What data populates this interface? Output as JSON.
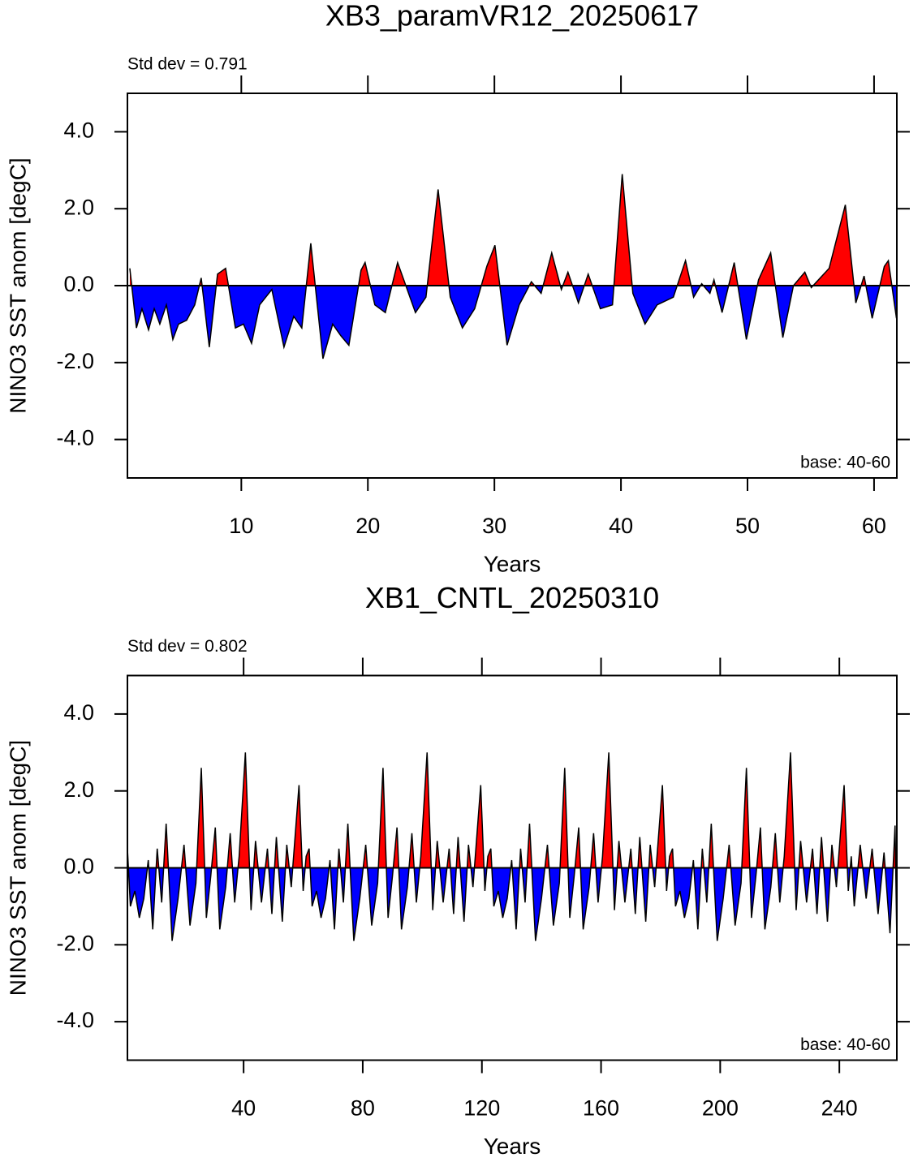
{
  "chart_data": [
    {
      "type": "area",
      "title": "XB3_paramVR12_20250617",
      "subtitle": "Std dev = 0.791",
      "annotation": "base: 40-60",
      "x_label": "Years",
      "y_label": "NINO3 SST anom [degC]",
      "pos_color": "#ff0000",
      "neg_color": "#0000ff",
      "xlim": [
        1,
        61.8
      ],
      "xticks": [
        10,
        20,
        30,
        40,
        50,
        60
      ],
      "ylim": [
        -5,
        5
      ],
      "yticks": [
        {
          "value": 4,
          "label": "4.0"
        },
        {
          "value": 2,
          "label": "2.0"
        },
        {
          "value": 0,
          "label": "0.0"
        },
        {
          "value": -2,
          "label": "-2.0"
        },
        {
          "value": -4,
          "label": "-4.0"
        }
      ],
      "x": [
        1.19,
        1.71,
        2.15,
        2.67,
        3.12,
        3.56,
        4.08,
        4.59,
        5.04,
        5.68,
        6.32,
        6.83,
        7.47,
        8.12,
        8.76,
        9.53,
        10.17,
        10.81,
        11.45,
        12.41,
        13.37,
        14.14,
        14.78,
        15.49,
        16.45,
        17.22,
        17.86,
        18.5,
        19.46,
        19.78,
        20.55,
        21.38,
        22.35,
        23.76,
        24.59,
        25.55,
        26.51,
        27.47,
        28.44,
        29.4,
        30.04,
        31,
        31.96,
        32.92,
        33.69,
        34.53,
        35.29,
        35.81,
        36.64,
        37.41,
        38.37,
        39.33,
        40.1,
        40.94,
        41.9,
        42.86,
        44.14,
        45.1,
        45.74,
        46.38,
        47.03,
        47.35,
        47.99,
        48.95,
        49.91,
        50.87,
        51.83,
        52.79,
        53.63,
        54.53,
        55.04,
        56.45,
        57.73,
        58.56,
        59.21,
        59.85,
        60.81,
        61.13,
        61.77
      ],
      "values": [
        0.45,
        -1.1,
        -0.6,
        -1.15,
        -0.6,
        -1.0,
        -0.5,
        -1.4,
        -1.0,
        -0.9,
        -0.5,
        0.2,
        -1.6,
        0.3,
        0.45,
        -1.1,
        -1.0,
        -1.5,
        -0.5,
        -0.1,
        -1.6,
        -0.8,
        -1.1,
        1.1,
        -1.9,
        -1.0,
        -1.3,
        -1.55,
        0.4,
        0.6,
        -0.5,
        -0.7,
        0.6,
        -0.7,
        -0.3,
        2.5,
        -0.3,
        -1.1,
        -0.6,
        0.5,
        1.05,
        -1.55,
        -0.5,
        0.1,
        -0.2,
        0.85,
        -0.1,
        0.35,
        -0.45,
        0.3,
        -0.6,
        -0.5,
        2.9,
        -0.2,
        -1.0,
        -0.5,
        -0.3,
        0.65,
        -0.3,
        0.05,
        -0.2,
        0.15,
        -0.7,
        0.6,
        -1.4,
        0.15,
        0.85,
        -1.35,
        0.0,
        0.35,
        -0.05,
        0.45,
        2.1,
        -0.45,
        0.25,
        -0.85,
        0.5,
        0.65,
        -0.85
      ]
    },
    {
      "type": "area",
      "title": "XB1_CNTL_20250310",
      "subtitle": "Std dev = 0.802",
      "annotation": "base: 40-60",
      "x_label": "Years",
      "y_label": "NINO3 SST anom [degC]",
      "pos_color": "#ff0000",
      "neg_color": "#0000ff",
      "xlim": [
        1,
        259.3
      ],
      "xticks": [
        40,
        80,
        120,
        160,
        200,
        240
      ],
      "ylim": [
        -5,
        5
      ],
      "yticks": [
        {
          "value": 4,
          "label": "4.0"
        },
        {
          "value": 2,
          "label": "2.0"
        },
        {
          "value": 0,
          "label": "0.0"
        },
        {
          "value": -2,
          "label": "-2.0"
        },
        {
          "value": -4,
          "label": "-4.0"
        }
      ],
      "x": [
        1,
        2,
        3.5,
        5,
        6.5,
        8,
        9.5,
        11,
        12.5,
        14,
        16,
        18,
        20,
        22,
        24,
        25.8,
        27.5,
        29,
        30.5,
        32,
        34,
        35.5,
        37,
        38.5,
        40.6,
        42.5,
        44,
        46,
        48,
        49.5,
        51,
        53,
        54.5,
        56,
        58.6,
        60,
        61,
        62,
        63,
        64.5,
        66,
        67.5,
        69,
        70.5,
        72,
        73.5,
        75,
        77,
        79,
        81,
        83,
        85,
        86.8,
        88.5,
        90,
        91.5,
        93,
        95,
        96.5,
        98,
        99.5,
        101.6,
        103.5,
        105,
        107,
        109,
        110.5,
        112,
        114,
        115.5,
        117,
        119.6,
        121,
        122,
        123,
        124,
        125.5,
        127,
        128.5,
        130,
        131.5,
        133,
        134.5,
        136,
        138,
        140,
        142,
        144,
        146,
        147.8,
        149.5,
        151,
        152.5,
        154,
        156,
        157.5,
        159,
        160.5,
        162.6,
        164.5,
        166,
        168,
        170,
        171.5,
        173,
        175,
        176.5,
        178,
        180.6,
        182,
        183,
        184,
        185,
        186.5,
        188,
        189.5,
        191,
        192.5,
        194,
        195.5,
        197,
        199,
        201,
        203,
        205,
        207,
        208.8,
        210.5,
        212,
        213.5,
        215,
        217,
        218.5,
        220,
        221.5,
        223.6,
        225.5,
        227,
        229,
        231,
        232.5,
        234,
        236,
        237.5,
        239,
        241.6,
        243,
        244,
        245,
        247,
        249,
        251,
        253,
        255,
        257,
        258.7,
        259.3
      ],
      "values": [
        0.5,
        -1.0,
        -0.6,
        -1.3,
        -0.8,
        0.2,
        -1.6,
        0.5,
        -0.9,
        1.15,
        -1.9,
        -0.8,
        0.6,
        -1.5,
        -0.4,
        2.6,
        -1.3,
        -0.2,
        1.05,
        -1.6,
        -0.5,
        0.9,
        -0.9,
        0.3,
        3.0,
        -1.1,
        0.7,
        -0.9,
        0.5,
        -1.2,
        0.8,
        -1.4,
        0.6,
        -0.5,
        2.15,
        -0.6,
        0.3,
        0.5,
        -1.0,
        -0.6,
        -1.3,
        -0.8,
        0.2,
        -1.6,
        0.5,
        -0.9,
        1.15,
        -1.9,
        -0.8,
        0.6,
        -1.5,
        -0.4,
        2.6,
        -1.3,
        -0.2,
        1.05,
        -1.6,
        -0.5,
        0.9,
        -0.9,
        0.3,
        3.0,
        -1.1,
        0.7,
        -0.9,
        0.5,
        -1.2,
        0.8,
        -1.4,
        0.6,
        -0.5,
        2.15,
        -0.6,
        0.3,
        0.5,
        -1.0,
        -0.6,
        -1.3,
        -0.8,
        0.2,
        -1.6,
        0.5,
        -0.9,
        1.15,
        -1.9,
        -0.8,
        0.6,
        -1.5,
        -0.4,
        2.6,
        -1.3,
        -0.2,
        1.05,
        -1.6,
        -0.5,
        0.9,
        -0.9,
        0.3,
        3.0,
        -1.1,
        0.7,
        -0.9,
        0.5,
        -1.2,
        0.8,
        -1.4,
        0.6,
        -0.5,
        2.15,
        -0.6,
        0.3,
        0.5,
        -1.0,
        -0.6,
        -1.3,
        -0.8,
        0.2,
        -1.6,
        0.5,
        -0.9,
        1.15,
        -1.9,
        -0.8,
        0.6,
        -1.5,
        -0.4,
        2.6,
        -1.3,
        -0.2,
        1.05,
        -1.6,
        -0.5,
        0.9,
        -0.9,
        0.3,
        3.0,
        -1.1,
        0.7,
        -0.9,
        0.5,
        -1.2,
        0.8,
        -1.4,
        0.6,
        -0.5,
        2.15,
        -0.6,
        0.3,
        -1.0,
        0.6,
        -0.8,
        0.5,
        -1.2,
        0.4,
        -1.7,
        1.1,
        -1.9
      ]
    }
  ]
}
